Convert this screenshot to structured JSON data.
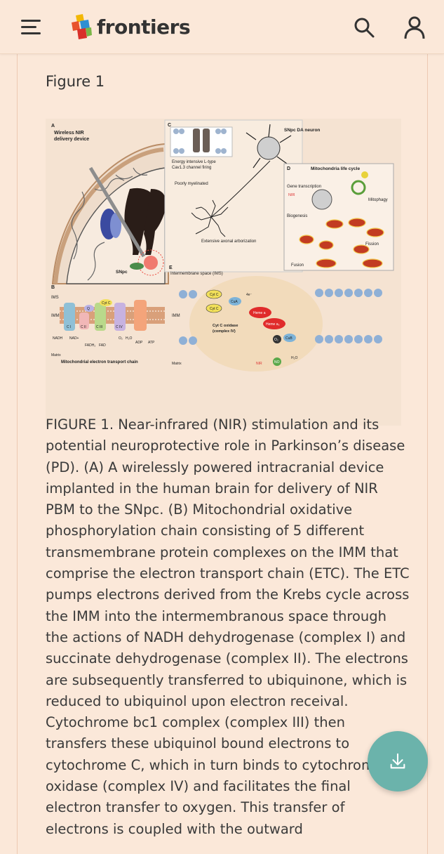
{
  "header": {
    "brand": "frontiers",
    "menu_icon": "hamburger-menu-icon",
    "search_icon": "search-icon",
    "user_icon": "user-icon"
  },
  "figure": {
    "heading": "Figure 1",
    "panels": {
      "a_label": "A",
      "a_title_1": "Wireless NIR",
      "a_title_2": "delivery device",
      "snpc": "SNpc",
      "b_label": "B",
      "ims": "IMS",
      "imm": "IMM",
      "matrix": "Matrix",
      "etc_title": "Mitochondrial electron transport chain",
      "ci": "C I",
      "cii": "C II",
      "ciii": "C III",
      "civ": "C IV",
      "q": "Q",
      "cytc": "Cyt C",
      "atp_synthase": "ATP synthase",
      "nadh": "NADH",
      "nad": "NAD+",
      "fadh2": "FADH₂",
      "fad": "FAD",
      "o2": "O₂",
      "h2o": "H₂O",
      "adp": "ADP",
      "atp": "ATP",
      "c_label": "C",
      "c_line1": "Energy intensive L-type",
      "c_line2": "Cav1.3 channel firing",
      "poorly": "Poorly myelinated",
      "axonal": "Extensive axonal arborization",
      "da_neuron": "SNpc DA neuron",
      "d_label": "D",
      "d_title": "Mitochondria life cycle",
      "gene": "Gene transcription",
      "nir": "NIR",
      "biogenesis": "Biogenesis",
      "mitophagy": "Mitophagy",
      "fission": "Fission",
      "fusion": "Fusion",
      "e_label": "E",
      "e_title": "Intermembrane space (IMS)",
      "e_imm": "IMM",
      "cuA": "CuA",
      "cuB": "CuB",
      "heme_a": "Heme a",
      "heme_a3": "Heme a₃",
      "cyt_ox_1": "Cyt C oxidase",
      "cyt_ox_2": "(complex IV)",
      "e_matrix": "Matrix",
      "no": "NO",
      "h_plus": "H⁺",
      "four": "4",
      "two": "2",
      "electron": "4e⁻",
      "h2o_e": "H₂O"
    }
  },
  "caption": "FIGURE 1. Near-infrared (NIR) stimulation and its potential neuroprotective role in Parkinson’s disease (PD). (A) A wirelessly powered intracranial device implanted in the human brain for delivery of NIR PBM to the SNpc. (B) Mitochondrial oxidative phosphorylation chain consisting of 5 different transmembrane protein complexes on the IMM that comprise the electron transport chain (ETC). The ETC pumps electrons derived from the Krebs cycle across the IMM into the intermembranous space through the actions of NADH dehydrogenase (complex I) and succinate dehydrogenase (complex II). The electrons are subsequently transferred to ubiquinone, which is reduced to ubiquinol upon electron receival. Cytochrome bc1 complex (complex III) then transfers these ubiquinol bound electrons to cytochrome C, which in turn binds to cytochrome C oxidase (complex IV) and facilitates the final electron transfer to oxygen. This transfer of electrons is coupled with the outward",
  "fab": {
    "icon": "download-icon"
  },
  "colors": {
    "background": "#fbe8d9",
    "fab": "#6bb3ab",
    "text": "#333333"
  }
}
